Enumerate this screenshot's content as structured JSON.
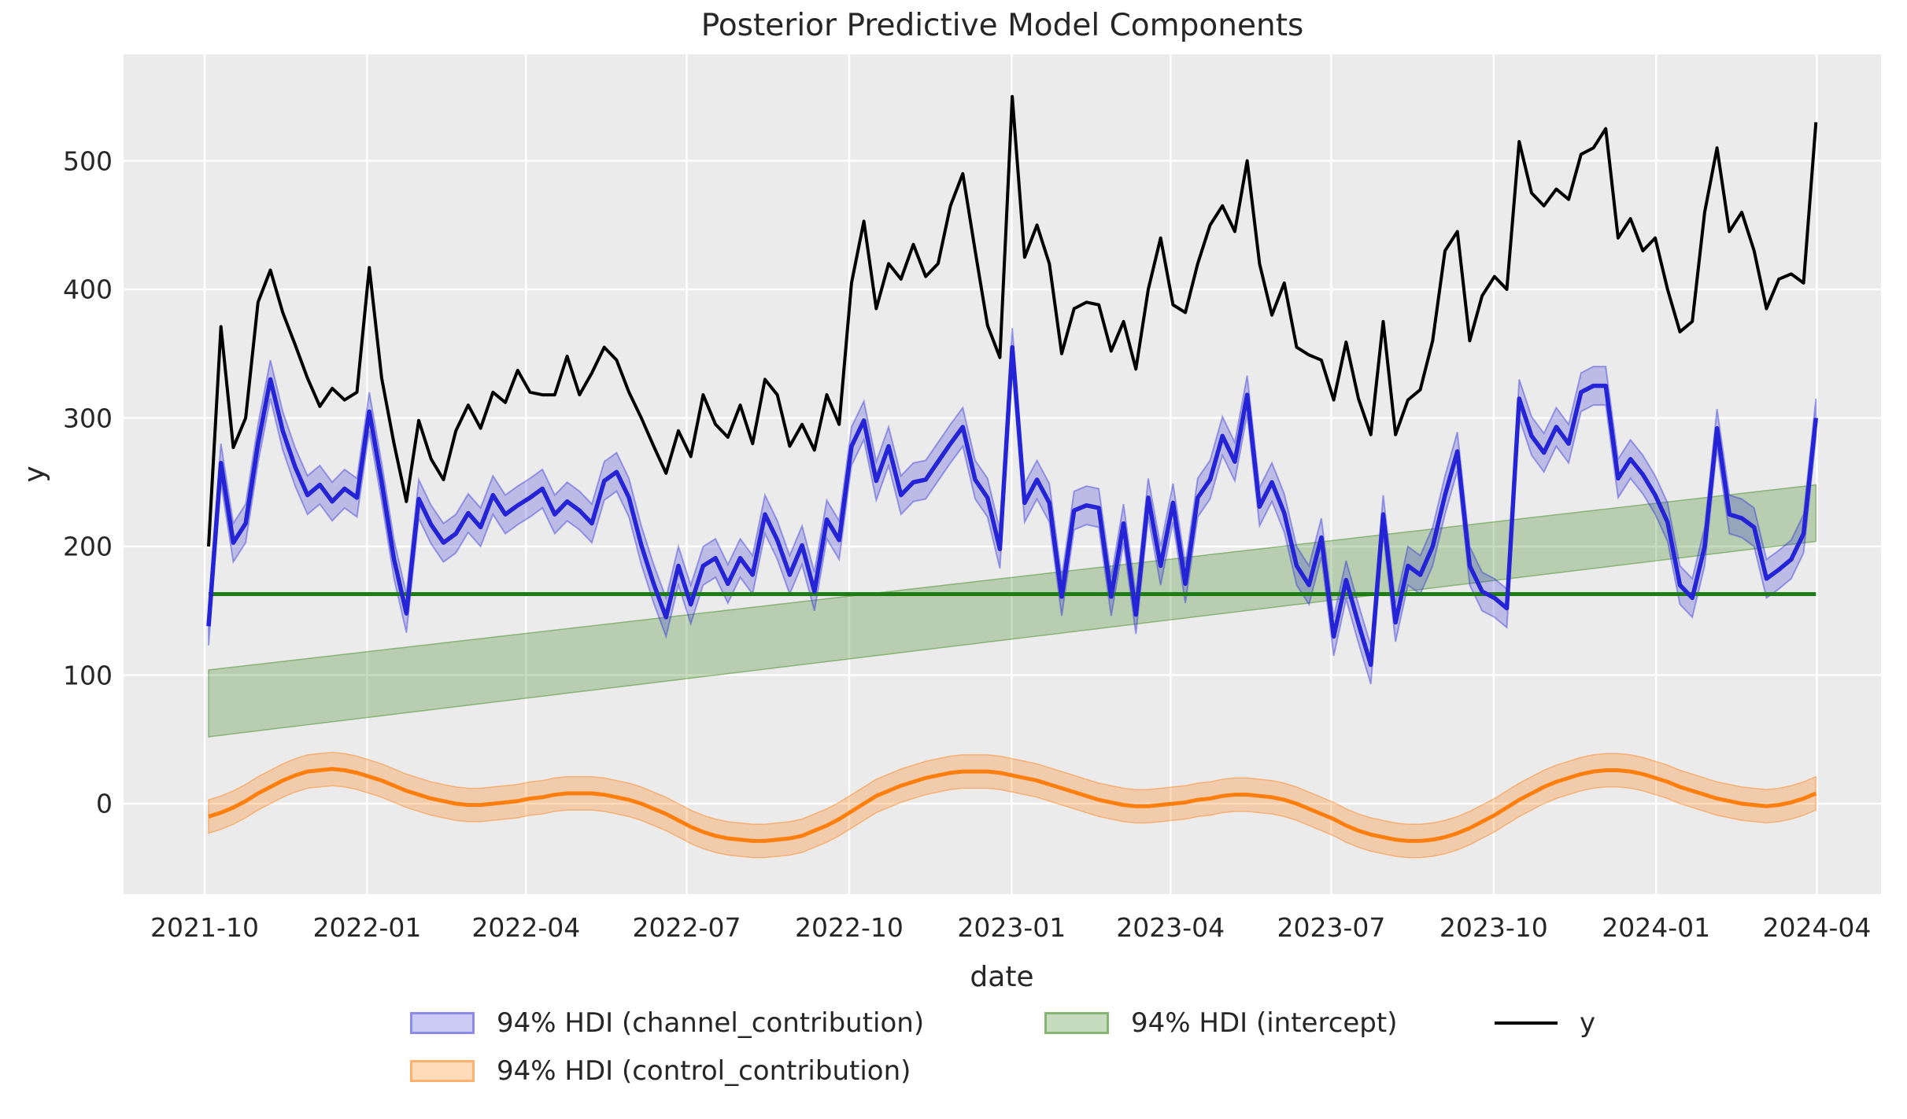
{
  "title": "Posterior Predictive Model Components",
  "axes": {
    "xlabel": "date",
    "ylabel": "y",
    "x_tick_labels": [
      "2021-10",
      "2022-01",
      "2022-04",
      "2022-07",
      "2022-10",
      "2023-01",
      "2023-04",
      "2023-07",
      "2023-10",
      "2024-01",
      "2024-04"
    ],
    "x_tick_day_offsets": [
      0,
      92,
      182,
      273,
      365,
      457,
      547,
      638,
      730,
      822,
      913
    ],
    "y_ticks": [
      0,
      100,
      200,
      300,
      400,
      500
    ]
  },
  "legend": {
    "items": [
      {
        "label": "94% HDI (channel_contribution)",
        "swatch": "blue-patch"
      },
      {
        "label": "94% HDI (intercept)",
        "swatch": "green-patch"
      },
      {
        "label": "y",
        "swatch": "black-line"
      },
      {
        "label": "94% HDI (control_contribution)",
        "swatch": "orange-patch"
      }
    ]
  },
  "colors": {
    "background": "#ffffff",
    "plot_bg": "#ebebeb",
    "grid": "#ffffff",
    "text": "#262626",
    "y_line": "#000000",
    "channel_line": "#2424d6",
    "channel_band": "rgba(45,45,215,0.25)",
    "channel_band_edge": "rgba(45,45,215,0.40)",
    "intercept_line": "#1d7d12",
    "intercept_band": "rgba(70,140,40,0.30)",
    "intercept_band_edge": "rgba(70,140,40,0.50)",
    "control_line": "#ff7f0e",
    "control_band": "rgba(255,127,14,0.28)",
    "control_band_edge": "rgba(255,127,14,0.45)"
  },
  "chart_data": {
    "type": "line",
    "title": "Posterior Predictive Model Components",
    "xlabel": "date",
    "ylabel": "y",
    "x_start_date": "2021-10-03",
    "x_freq_days": 7,
    "n_points": 131,
    "ylim": [
      -70,
      583
    ],
    "grid": true,
    "legend_position": "bottom-center",
    "hdi_probability": "94%",
    "series": [
      {
        "name": "y",
        "style": "line",
        "values": [
          200,
          371,
          277,
          300,
          390,
          415,
          382,
          357,
          331,
          309,
          323,
          314,
          320,
          417,
          331,
          280,
          235,
          298,
          268,
          252,
          290,
          310,
          292,
          320,
          312,
          337,
          320,
          318,
          318,
          348,
          318,
          335,
          355,
          345,
          320,
          300,
          278,
          257,
          290,
          270,
          318,
          295,
          285,
          310,
          280,
          330,
          318,
          278,
          295,
          275,
          318,
          295,
          405,
          453,
          385,
          420,
          408,
          435,
          410,
          420,
          465,
          490,
          430,
          372,
          347,
          550,
          425,
          450,
          420,
          350,
          385,
          390,
          388,
          352,
          375,
          338,
          400,
          440,
          388,
          382,
          420,
          450,
          465,
          445,
          500,
          420,
          380,
          405,
          355,
          349,
          345,
          314,
          359,
          315,
          287,
          375,
          287,
          314,
          322,
          360,
          430,
          445,
          360,
          395,
          410,
          400,
          515,
          475,
          465,
          478,
          470,
          505,
          510,
          525,
          440,
          455,
          430,
          440,
          400,
          367,
          375,
          460,
          510,
          445,
          460,
          430,
          385,
          408,
          412,
          405,
          530
        ]
      },
      {
        "name": "channel_contribution",
        "style": "line+hdi_band",
        "hdi_halfwidth": 15,
        "values": [
          138,
          265,
          203,
          218,
          280,
          330,
          290,
          262,
          240,
          248,
          235,
          245,
          238,
          305,
          250,
          190,
          148,
          237,
          217,
          203,
          210,
          226,
          215,
          240,
          225,
          232,
          238,
          245,
          225,
          235,
          228,
          218,
          251,
          258,
          238,
          201,
          171,
          145,
          185,
          155,
          185,
          191,
          171,
          191,
          178,
          225,
          205,
          178,
          201,
          165,
          221,
          205,
          278,
          298,
          251,
          278,
          240,
          250,
          252,
          266,
          280,
          293,
          252,
          238,
          198,
          355,
          234,
          252,
          234,
          161,
          228,
          232,
          230,
          161,
          218,
          147,
          238,
          185,
          234,
          171,
          238,
          252,
          286,
          266,
          318,
          231,
          250,
          226,
          185,
          170,
          207,
          130,
          174,
          140,
          108,
          225,
          141,
          185,
          178,
          200,
          240,
          274,
          185,
          165,
          160,
          152,
          315,
          286,
          273,
          293,
          280,
          320,
          325,
          325,
          253,
          268,
          256,
          240,
          219,
          170,
          160,
          200,
          292,
          225,
          222,
          215,
          175,
          182,
          190,
          210,
          300
        ]
      },
      {
        "name": "intercept",
        "style": "hdi_band+mean_line",
        "mean_line_value": 163,
        "hdi_start": [
          52,
          104
        ],
        "hdi_end": [
          204,
          248
        ],
        "band_interpolation": "linear"
      },
      {
        "name": "control_contribution",
        "style": "line+hdi_band",
        "hdi_halfwidth": 13,
        "values": [
          -10,
          -7,
          -3,
          2,
          8,
          13,
          18,
          22,
          25,
          26,
          27,
          26,
          24,
          21,
          18,
          14,
          10,
          7,
          4,
          2,
          0,
          -1,
          -1,
          0,
          1,
          2,
          4,
          5,
          7,
          8,
          8,
          8,
          7,
          5,
          3,
          0,
          -4,
          -8,
          -13,
          -18,
          -22,
          -25,
          -27,
          -28,
          -29,
          -29,
          -28,
          -27,
          -25,
          -21,
          -17,
          -12,
          -6,
          0,
          6,
          10,
          14,
          17,
          20,
          22,
          24,
          25,
          25,
          25,
          24,
          22,
          20,
          18,
          15,
          12,
          9,
          6,
          3,
          1,
          -1,
          -2,
          -2,
          -1,
          0,
          1,
          3,
          4,
          6,
          7,
          7,
          6,
          5,
          3,
          0,
          -4,
          -8,
          -12,
          -17,
          -21,
          -24,
          -26,
          -28,
          -29,
          -29,
          -28,
          -26,
          -23,
          -19,
          -14,
          -9,
          -3,
          3,
          8,
          13,
          17,
          20,
          23,
          25,
          26,
          26,
          25,
          23,
          20,
          17,
          13,
          10,
          7,
          4,
          2,
          0,
          -1,
          -2,
          -1,
          1,
          4,
          8
        ]
      }
    ]
  }
}
